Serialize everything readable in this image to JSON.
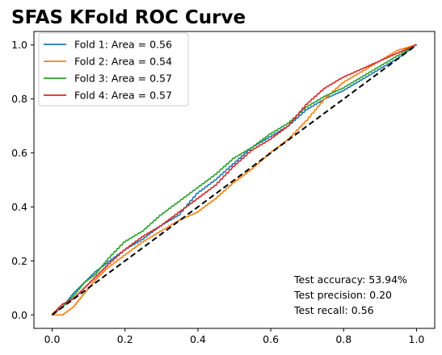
{
  "chart_data": {
    "type": "line",
    "title": "SFAS KFold ROC Curve",
    "xlabel": "",
    "ylabel": "",
    "xlim": [
      -0.05,
      1.05
    ],
    "ylim": [
      -0.05,
      1.05
    ],
    "xticks": [
      "0.0",
      "0.2",
      "0.4",
      "0.6",
      "0.8",
      "1.0"
    ],
    "yticks": [
      "0.0",
      "0.2",
      "0.4",
      "0.6",
      "0.8",
      "1.0"
    ],
    "grid": false,
    "legend_position": "upper-left",
    "series": [
      {
        "name": "Fold 1: Area = 0.56",
        "color": "#1f77b4",
        "x": [
          0.0,
          0.03,
          0.06,
          0.09,
          0.12,
          0.15,
          0.2,
          0.25,
          0.3,
          0.35,
          0.4,
          0.45,
          0.5,
          0.55,
          0.6,
          0.65,
          0.7,
          0.75,
          0.8,
          0.85,
          0.9,
          0.95,
          1.0
        ],
        "y": [
          0.0,
          0.03,
          0.08,
          0.12,
          0.16,
          0.19,
          0.24,
          0.28,
          0.33,
          0.37,
          0.45,
          0.5,
          0.56,
          0.62,
          0.66,
          0.7,
          0.76,
          0.8,
          0.83,
          0.87,
          0.91,
          0.95,
          1.0
        ]
      },
      {
        "name": "Fold 2: Area = 0.54",
        "color": "#ff7f0e",
        "x": [
          0.0,
          0.03,
          0.06,
          0.09,
          0.12,
          0.15,
          0.2,
          0.25,
          0.3,
          0.35,
          0.4,
          0.45,
          0.5,
          0.55,
          0.6,
          0.65,
          0.7,
          0.75,
          0.8,
          0.85,
          0.9,
          0.95,
          1.0
        ],
        "y": [
          0.0,
          0.0,
          0.03,
          0.08,
          0.13,
          0.17,
          0.22,
          0.27,
          0.31,
          0.35,
          0.38,
          0.43,
          0.49,
          0.54,
          0.6,
          0.65,
          0.72,
          0.8,
          0.86,
          0.9,
          0.94,
          0.98,
          1.0
        ]
      },
      {
        "name": "Fold 3: Area = 0.57",
        "color": "#2ca02c",
        "x": [
          0.0,
          0.03,
          0.06,
          0.09,
          0.12,
          0.15,
          0.2,
          0.25,
          0.3,
          0.35,
          0.4,
          0.45,
          0.5,
          0.55,
          0.6,
          0.65,
          0.7,
          0.75,
          0.8,
          0.85,
          0.9,
          0.95,
          1.0
        ],
        "y": [
          0.0,
          0.03,
          0.07,
          0.12,
          0.15,
          0.2,
          0.27,
          0.31,
          0.37,
          0.42,
          0.47,
          0.52,
          0.58,
          0.62,
          0.67,
          0.71,
          0.77,
          0.81,
          0.84,
          0.88,
          0.92,
          0.96,
          1.0
        ]
      },
      {
        "name": "Fold 4: Area = 0.57",
        "color": "#d62728",
        "x": [
          0.0,
          0.03,
          0.06,
          0.09,
          0.12,
          0.15,
          0.2,
          0.25,
          0.3,
          0.35,
          0.4,
          0.45,
          0.5,
          0.55,
          0.6,
          0.65,
          0.7,
          0.75,
          0.8,
          0.85,
          0.9,
          0.95,
          1.0
        ],
        "y": [
          0.0,
          0.04,
          0.06,
          0.1,
          0.14,
          0.18,
          0.24,
          0.29,
          0.33,
          0.38,
          0.43,
          0.48,
          0.55,
          0.61,
          0.65,
          0.7,
          0.78,
          0.84,
          0.88,
          0.91,
          0.94,
          0.97,
          1.0
        ]
      }
    ],
    "reference_line": {
      "style": "dashed",
      "color": "#000000",
      "x": [
        0,
        1
      ],
      "y": [
        0,
        1
      ]
    },
    "annotations": [
      "Test accuracy: 53.94%",
      "Test precision: 0.20",
      "Test recall: 0.56"
    ]
  }
}
